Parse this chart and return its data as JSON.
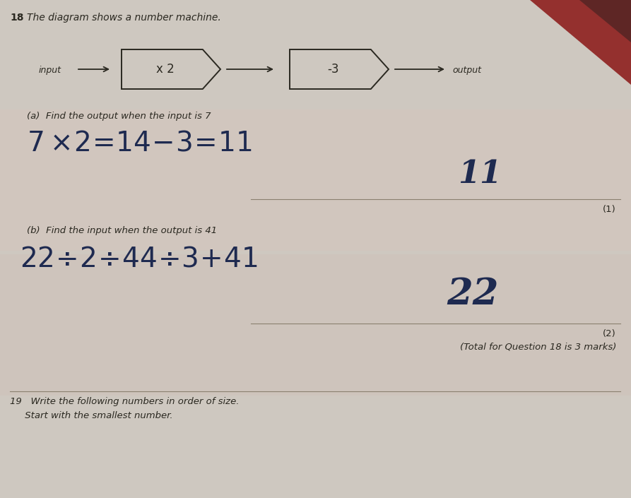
{
  "bg_color": "#cec8c0",
  "bg_color_lower": "#c8c0b8",
  "question_number": "18",
  "question_text": "The diagram shows a number machine.",
  "box1_label": "x 2",
  "box2_label": "-3",
  "input_label": "input",
  "output_label": "output",
  "part_a_text": "(a)  Find the output when the input is 7",
  "part_a_working_1": "7×2 = 14−3 = 11",
  "part_a_answer": "11",
  "part_a_marks": "(1)",
  "part_b_text": "(b)  Find the input when the output is 41",
  "part_b_working": "22 ÷2 = 44 ÷3 + 41",
  "part_b_answer": "22",
  "part_b_marks": "(2)",
  "total_marks": "(Total for Question 18 is 3 marks)",
  "q19_text": "19   Write the following numbers in order of size.",
  "q19_subtext": "     Start with the smallest number.",
  "text_color": "#2a2820",
  "handwritten_color": "#1e2a50",
  "line_color": "#8a8070",
  "corner_color": "#8b2020"
}
